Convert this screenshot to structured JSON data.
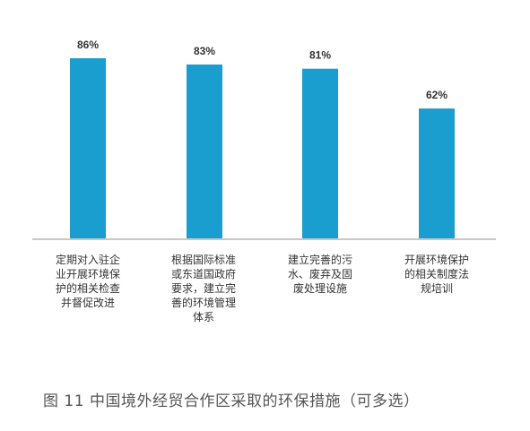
{
  "chart_data": {
    "type": "bar",
    "categories": [
      "定期对入驻企业开展环境保护的相关检查并督促改进",
      "根据国际标准或东道国政府要求，建立完善的环境管理体系",
      "建立完善的污水、废弃及固废处理设施",
      "开展环境保护的相关制度法规培训"
    ],
    "category_label_lines": [
      [
        "定期对入驻企",
        "业开展环境保",
        "护的相关检查",
        "并督促改进"
      ],
      [
        "根据国际标准",
        "或东道国政府",
        "要求，建立完",
        "善的环境管理",
        "体系"
      ],
      [
        "建立完善的污",
        "水、废弃及固",
        "废处理设施"
      ],
      [
        "开展环境保护",
        "的相关制度法",
        "规培训"
      ]
    ],
    "values": [
      86,
      83,
      81,
      62
    ],
    "data_labels": [
      "86%",
      "83%",
      "81%",
      "62%"
    ],
    "unit": "%",
    "ylim": [
      0,
      100
    ],
    "grid": false,
    "legend": "none",
    "bar_color": "#1a9ecf"
  },
  "caption": "图 11  中国境外经贸合作区采取的环保措施（可多选）"
}
